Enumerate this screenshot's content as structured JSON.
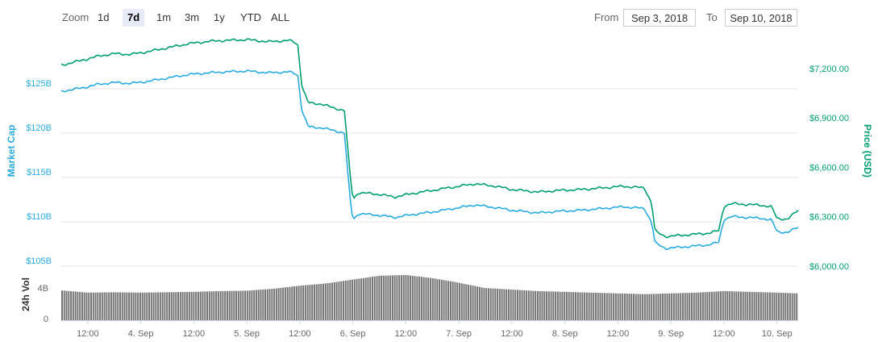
{
  "toolbar": {
    "zoom_label": "Zoom",
    "zoom_options": [
      "1d",
      "7d",
      "1m",
      "3m",
      "1y",
      "YTD",
      "ALL"
    ],
    "zoom_selected": "7d",
    "from_label": "From",
    "from_value": "Sep 3, 2018",
    "to_label": "To",
    "to_value": "Sep 10, 2018"
  },
  "colors": {
    "market_cap": "#29abe2",
    "price": "#009e73",
    "volume": "#737373",
    "grid": "#e6e6e6",
    "active_zoom_bg": "#e6ebf5"
  },
  "chart_data": {
    "type": "line",
    "x_tick_labels": [
      "12:00",
      "4. Sep",
      "12:00",
      "5. Sep",
      "12:00",
      "6. Sep",
      "12:00",
      "7. Sep",
      "12:00",
      "8. Sep",
      "12:00",
      "9. Sep",
      "12:00",
      "10. Sep"
    ],
    "x": [
      3.5,
      4.0,
      4.5,
      5.0,
      5.5,
      6.0,
      6.5,
      7.0,
      7.5,
      8.0,
      8.5,
      9.0,
      9.5,
      10.0
    ],
    "left_axis": {
      "label": "Market Cap",
      "ticks": [
        "$105B",
        "$110B",
        "$115B",
        "$120B",
        "$125B"
      ],
      "tick_values": [
        105,
        110,
        115,
        120,
        125
      ],
      "range": [
        105,
        131
      ]
    },
    "right_axis": {
      "label": "Price (USD)",
      "ticks": [
        "$6,000.00",
        "$6,300.00",
        "$6,600.00",
        "$6,900.00",
        "$7,200.00"
      ],
      "tick_values": [
        6000,
        6300,
        6600,
        6900,
        7200
      ],
      "range": [
        6000,
        7400
      ]
    },
    "volume_axis": {
      "label": "24h Vol",
      "ticks": [
        "0",
        "4B"
      ],
      "tick_values": [
        0,
        4
      ],
      "range": [
        0,
        6
      ]
    },
    "grid": true,
    "series": [
      {
        "name": "Market Cap",
        "axis": "left",
        "points": [
          [
            3.25,
            124.7
          ],
          [
            3.35,
            124.9
          ],
          [
            3.45,
            125.1
          ],
          [
            3.6,
            125.5
          ],
          [
            3.75,
            125.7
          ],
          [
            3.9,
            125.6
          ],
          [
            4.05,
            125.8
          ],
          [
            4.25,
            126.2
          ],
          [
            4.45,
            126.6
          ],
          [
            4.65,
            126.8
          ],
          [
            4.8,
            126.9
          ],
          [
            5.0,
            127.0
          ],
          [
            5.2,
            126.8
          ],
          [
            5.4,
            126.9
          ],
          [
            5.48,
            126.6
          ],
          [
            5.52,
            122.5
          ],
          [
            5.58,
            120.7
          ],
          [
            5.7,
            120.6
          ],
          [
            5.82,
            120.3
          ],
          [
            5.92,
            120.0
          ],
          [
            5.97,
            113.0
          ],
          [
            6.0,
            110.2
          ],
          [
            6.05,
            110.9
          ],
          [
            6.2,
            110.8
          ],
          [
            6.4,
            110.5
          ],
          [
            6.55,
            110.8
          ],
          [
            6.75,
            111.1
          ],
          [
            6.95,
            111.5
          ],
          [
            7.15,
            111.9
          ],
          [
            7.35,
            111.6
          ],
          [
            7.5,
            111.3
          ],
          [
            7.75,
            111.0
          ],
          [
            7.95,
            111.2
          ],
          [
            8.15,
            111.3
          ],
          [
            8.35,
            111.5
          ],
          [
            8.55,
            111.7
          ],
          [
            8.75,
            111.5
          ],
          [
            8.82,
            109.9
          ],
          [
            8.85,
            107.6
          ],
          [
            8.95,
            107.0
          ],
          [
            9.15,
            107.2
          ],
          [
            9.35,
            107.4
          ],
          [
            9.45,
            107.7
          ],
          [
            9.5,
            110.3
          ],
          [
            9.58,
            110.6
          ],
          [
            9.7,
            110.5
          ],
          [
            9.85,
            110.4
          ],
          [
            9.95,
            110.2
          ],
          [
            10.0,
            108.9
          ],
          [
            10.1,
            108.8
          ],
          [
            10.2,
            109.4
          ]
        ]
      },
      {
        "name": "Price (USD)",
        "axis": "right",
        "points": [
          [
            3.25,
            7220
          ],
          [
            3.35,
            7235
          ],
          [
            3.45,
            7250
          ],
          [
            3.6,
            7275
          ],
          [
            3.75,
            7290
          ],
          [
            3.9,
            7285
          ],
          [
            4.05,
            7300
          ],
          [
            4.25,
            7325
          ],
          [
            4.45,
            7350
          ],
          [
            4.65,
            7365
          ],
          [
            4.8,
            7370
          ],
          [
            5.0,
            7375
          ],
          [
            5.2,
            7362
          ],
          [
            5.4,
            7370
          ],
          [
            5.48,
            7350
          ],
          [
            5.52,
            7090
          ],
          [
            5.58,
            6990
          ],
          [
            5.7,
            6985
          ],
          [
            5.82,
            6960
          ],
          [
            5.92,
            6945
          ],
          [
            5.97,
            6580
          ],
          [
            6.0,
            6405
          ],
          [
            6.05,
            6445
          ],
          [
            6.2,
            6440
          ],
          [
            6.4,
            6420
          ],
          [
            6.55,
            6440
          ],
          [
            6.75,
            6460
          ],
          [
            6.95,
            6480
          ],
          [
            7.15,
            6500
          ],
          [
            7.35,
            6485
          ],
          [
            7.5,
            6465
          ],
          [
            7.75,
            6450
          ],
          [
            7.95,
            6460
          ],
          [
            8.15,
            6465
          ],
          [
            8.35,
            6475
          ],
          [
            8.55,
            6485
          ],
          [
            8.75,
            6475
          ],
          [
            8.82,
            6380
          ],
          [
            8.85,
            6210
          ],
          [
            8.95,
            6180
          ],
          [
            9.15,
            6190
          ],
          [
            9.35,
            6200
          ],
          [
            9.45,
            6215
          ],
          [
            9.5,
            6365
          ],
          [
            9.58,
            6380
          ],
          [
            9.7,
            6375
          ],
          [
            9.85,
            6370
          ],
          [
            9.95,
            6360
          ],
          [
            10.0,
            6290
          ],
          [
            10.1,
            6285
          ],
          [
            10.2,
            6340
          ]
        ]
      },
      {
        "name": "24h Vol",
        "axis": "volume",
        "points": [
          [
            3.25,
            3.9
          ],
          [
            3.5,
            3.6
          ],
          [
            3.75,
            3.65
          ],
          [
            4.0,
            3.6
          ],
          [
            4.25,
            3.65
          ],
          [
            4.5,
            3.7
          ],
          [
            4.75,
            3.8
          ],
          [
            5.0,
            3.85
          ],
          [
            5.25,
            4.1
          ],
          [
            5.5,
            4.5
          ],
          [
            5.75,
            4.8
          ],
          [
            6.0,
            5.3
          ],
          [
            6.25,
            5.8
          ],
          [
            6.5,
            5.9
          ],
          [
            6.75,
            5.5
          ],
          [
            7.0,
            4.9
          ],
          [
            7.25,
            4.2
          ],
          [
            7.5,
            4.0
          ],
          [
            7.75,
            3.8
          ],
          [
            8.0,
            3.7
          ],
          [
            8.25,
            3.6
          ],
          [
            8.5,
            3.5
          ],
          [
            8.75,
            3.4
          ],
          [
            9.0,
            3.5
          ],
          [
            9.25,
            3.6
          ],
          [
            9.5,
            3.8
          ],
          [
            9.75,
            3.7
          ],
          [
            10.0,
            3.6
          ],
          [
            10.2,
            3.5
          ]
        ]
      }
    ]
  }
}
